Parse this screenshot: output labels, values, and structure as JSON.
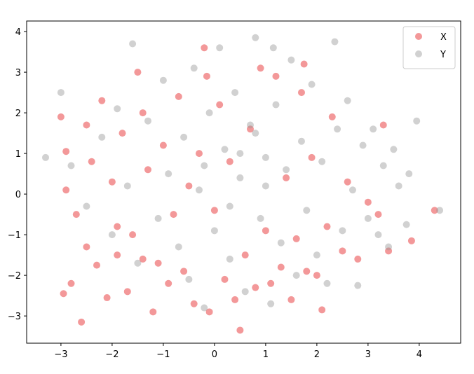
{
  "chart_data": {
    "type": "scatter",
    "xlim": [
      -3.67,
      4.81
    ],
    "ylim": [
      -3.67,
      4.26
    ],
    "xticks": [
      {
        "value": -3,
        "label": "−3"
      },
      {
        "value": -2,
        "label": "−2"
      },
      {
        "value": -1,
        "label": "−1"
      },
      0,
      1,
      2,
      3,
      4
    ],
    "yticks": [
      {
        "value": -3,
        "label": "−3"
      },
      {
        "value": -2,
        "label": "−2"
      },
      {
        "value": -1,
        "label": "−1"
      },
      0,
      1,
      2,
      3,
      4
    ],
    "legend": "upper right",
    "series": [
      {
        "name": "X",
        "color": "#e41a1c",
        "x": [
          -3.0,
          -2.9,
          -2.6,
          -2.8,
          -2.95,
          -2.9,
          -2.7,
          -2.5,
          -2.3,
          -2.2,
          -2.4,
          -2.1,
          -2.0,
          -1.9,
          -1.8,
          -1.7,
          -1.6,
          -1.5,
          -1.4,
          -1.4,
          -1.3,
          -1.2,
          -1.1,
          -1.0,
          -0.9,
          -0.8,
          -0.7,
          -0.6,
          -0.5,
          -0.4,
          -0.3,
          -0.2,
          -0.1,
          0.0,
          0.1,
          0.2,
          0.3,
          0.4,
          0.5,
          0.6,
          0.7,
          0.8,
          0.9,
          1.0,
          1.1,
          1.2,
          1.3,
          1.4,
          1.5,
          1.6,
          1.7,
          1.8,
          1.9,
          2.0,
          2.1,
          2.2,
          2.3,
          2.5,
          2.6,
          2.8,
          3.0,
          3.2,
          3.3,
          3.4,
          3.85,
          4.3,
          1.75,
          -0.15,
          -1.9,
          -2.5
        ],
        "values": [
          1.9,
          1.05,
          -3.15,
          -2.2,
          -2.45,
          0.1,
          -0.5,
          -1.3,
          -1.75,
          2.3,
          0.8,
          -2.55,
          0.3,
          -0.8,
          1.5,
          -2.4,
          -1.0,
          3.0,
          2.0,
          -1.6,
          0.6,
          -2.9,
          -1.7,
          1.2,
          -2.2,
          -0.5,
          2.4,
          -1.9,
          0.2,
          -2.7,
          1.0,
          3.6,
          -2.9,
          -0.4,
          2.2,
          -2.1,
          0.8,
          -2.6,
          -3.35,
          -1.5,
          1.6,
          -2.3,
          3.1,
          -0.9,
          -2.2,
          2.9,
          -1.8,
          0.4,
          -2.6,
          -1.1,
          2.5,
          -1.9,
          0.9,
          -2.0,
          -2.85,
          -0.8,
          1.9,
          -1.4,
          0.3,
          -1.6,
          -0.2,
          -0.5,
          1.7,
          -1.4,
          -1.15,
          -0.4,
          3.2,
          2.9,
          -1.5,
          1.7
        ]
      },
      {
        "name": "Y",
        "color": "#999999",
        "x": [
          -3.3,
          -3.0,
          -2.8,
          -2.5,
          -2.2,
          -2.0,
          -1.9,
          -1.7,
          -1.6,
          -1.5,
          -1.3,
          -1.1,
          -1.0,
          -0.9,
          -0.7,
          -0.6,
          -0.5,
          -0.4,
          -0.3,
          -0.2,
          -0.1,
          0.0,
          0.1,
          0.2,
          0.3,
          0.4,
          0.5,
          0.6,
          0.7,
          0.8,
          0.9,
          1.0,
          1.1,
          1.15,
          1.2,
          1.3,
          1.4,
          1.5,
          1.6,
          1.7,
          1.8,
          1.9,
          2.0,
          2.1,
          2.2,
          2.35,
          2.4,
          2.5,
          2.6,
          2.7,
          2.8,
          2.9,
          3.0,
          3.1,
          3.2,
          3.3,
          3.4,
          3.5,
          3.6,
          3.75,
          3.8,
          3.95,
          4.4,
          0.5,
          -0.2,
          1.0,
          0.3,
          0.8
        ],
        "values": [
          0.9,
          2.5,
          0.7,
          -0.3,
          1.4,
          -1.0,
          2.1,
          0.2,
          3.7,
          -1.7,
          1.8,
          -0.6,
          2.8,
          0.5,
          -1.3,
          1.4,
          -2.1,
          3.1,
          0.1,
          -2.8,
          2.0,
          -0.9,
          3.6,
          1.1,
          -1.6,
          2.5,
          0.4,
          -2.4,
          1.7,
          3.85,
          -0.6,
          0.9,
          -2.7,
          3.6,
          2.2,
          -1.2,
          0.6,
          3.3,
          -2.0,
          1.3,
          -0.4,
          2.7,
          -1.5,
          0.8,
          -2.2,
          3.75,
          1.6,
          -0.9,
          2.3,
          0.1,
          -2.25,
          1.2,
          -0.6,
          1.6,
          -1.0,
          0.7,
          -1.3,
          1.1,
          0.2,
          -0.75,
          0.5,
          1.8,
          -0.4,
          1.0,
          0.7,
          0.2,
          -0.3,
          1.5
        ]
      }
    ]
  }
}
